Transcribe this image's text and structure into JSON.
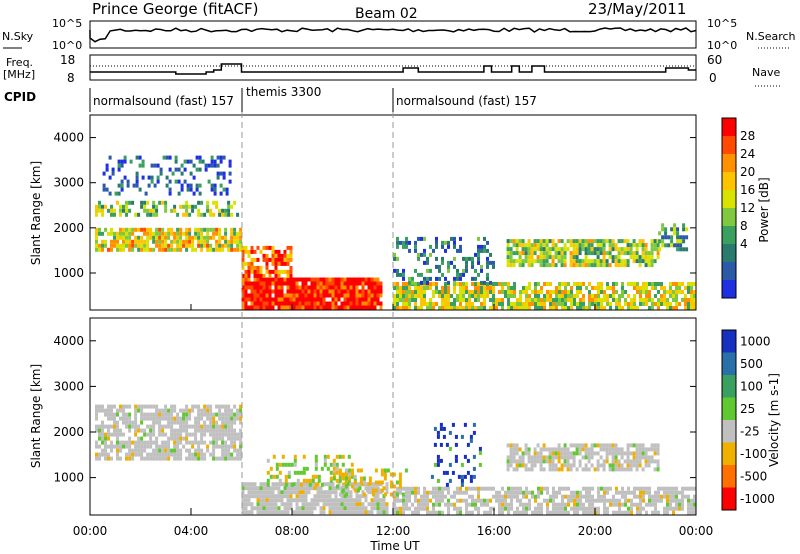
{
  "header": {
    "site": "Prince George (fitACF)",
    "beam": "Beam 02",
    "date": "23/May/2011"
  },
  "top_panels": {
    "nsky_label": "N.Sky",
    "nsky_ticks": [
      "10^5",
      "10^0"
    ],
    "nsearch_label": "N.Search",
    "freq_label_1": "Freq.",
    "freq_label_2": "[MHz]",
    "freq_ticks": [
      "18",
      "8"
    ],
    "nave_ticks": [
      "60",
      "0"
    ],
    "nave_label": "Nave",
    "cpid_label": "CPID",
    "cpid_segments": [
      {
        "label": "normalsound (fast) 157",
        "start_h": 0,
        "end_h": 6
      },
      {
        "label": "themis 3300",
        "start_h": 6,
        "end_h": 12
      },
      {
        "label": "normalsound (fast) 157",
        "start_h": 12,
        "end_h": 24
      }
    ]
  },
  "chart_data": [
    {
      "type": "heatmap",
      "name": "power",
      "ylabel": "Slant Range [km]",
      "y_ticks": [
        "4000",
        "3000",
        "2000",
        "1000"
      ],
      "ylim": [
        180,
        4500
      ],
      "xlim": [
        0,
        24
      ],
      "colorbar": {
        "label": "Power [dB]",
        "ticks": [
          "28",
          "24",
          "20",
          "16",
          "12",
          "8",
          "4"
        ],
        "colors": [
          "#ff0000",
          "#ff4a00",
          "#ff9000",
          "#ffc400",
          "#d8e400",
          "#80c840",
          "#3aa060",
          "#2a7a70",
          "#2a5aa8",
          "#1e30e0"
        ]
      },
      "regions": [
        {
          "x": [
            0.2,
            5.8
          ],
          "y": [
            2300,
            2600
          ],
          "level": 0.45,
          "density": 0.6
        },
        {
          "x": [
            0.2,
            6.0
          ],
          "y": [
            1500,
            2000
          ],
          "level": 0.6,
          "density": 0.8
        },
        {
          "x": [
            0.5,
            5.5
          ],
          "y": [
            2800,
            3600
          ],
          "level": 0.15,
          "density": 0.3
        },
        {
          "x": [
            6.0,
            11.5
          ],
          "y": [
            250,
            900
          ],
          "level": 0.95,
          "density": 0.95
        },
        {
          "x": [
            6.0,
            8.0
          ],
          "y": [
            900,
            1600
          ],
          "level": 0.8,
          "density": 0.7
        },
        {
          "x": [
            12.0,
            24.0
          ],
          "y": [
            250,
            800
          ],
          "level": 0.55,
          "density": 0.75
        },
        {
          "x": [
            16.5,
            22.5
          ],
          "y": [
            1200,
            1750
          ],
          "level": 0.5,
          "density": 0.8
        },
        {
          "x": [
            12.0,
            16.0
          ],
          "y": [
            800,
            1800
          ],
          "level": 0.25,
          "density": 0.35
        },
        {
          "x": [
            22.5,
            23.6
          ],
          "y": [
            1500,
            2100
          ],
          "level": 0.35,
          "density": 0.6
        }
      ]
    },
    {
      "type": "heatmap",
      "name": "velocity",
      "ylabel": "Slant Range [km]",
      "y_ticks": [
        "4000",
        "3000",
        "2000",
        "1000"
      ],
      "ylim": [
        180,
        4500
      ],
      "xlim": [
        0,
        24
      ],
      "xlabel": "Time UT",
      "x_ticks": [
        "00:00",
        "04:00",
        "08:00",
        "12:00",
        "16:00",
        "20:00",
        "00:00"
      ],
      "colorbar": {
        "label": "Velocity [m s-1]",
        "ticks": [
          "1000",
          "500",
          "100",
          "25",
          "-25",
          "-100",
          "-500",
          "-1000"
        ],
        "colors": [
          "#1830c0",
          "#2a70a8",
          "#3aa060",
          "#60c830",
          "#c0c0c0",
          "#f0b000",
          "#ff7000",
          "#ff0000"
        ]
      },
      "regions": [
        {
          "x": [
            0.2,
            6.0
          ],
          "y": [
            1400,
            2600
          ],
          "level": "ground",
          "density": 0.75
        },
        {
          "x": [
            6.0,
            11.8
          ],
          "y": [
            250,
            900
          ],
          "level": "ground",
          "density": 0.85
        },
        {
          "x": [
            7.0,
            10.5
          ],
          "y": [
            800,
            1500
          ],
          "level": "slow_pos",
          "density": 0.35
        },
        {
          "x": [
            12.0,
            24.0
          ],
          "y": [
            250,
            800
          ],
          "level": "ground",
          "density": 0.7
        },
        {
          "x": [
            16.5,
            22.5
          ],
          "y": [
            1200,
            1750
          ],
          "level": "ground",
          "density": 0.75
        },
        {
          "x": [
            9.5,
            12.5
          ],
          "y": [
            600,
            1200
          ],
          "level": "slow_neg",
          "density": 0.35
        },
        {
          "x": [
            13.5,
            15.5
          ],
          "y": [
            800,
            2200
          ],
          "level": "fast_pos",
          "density": 0.2
        }
      ]
    }
  ]
}
